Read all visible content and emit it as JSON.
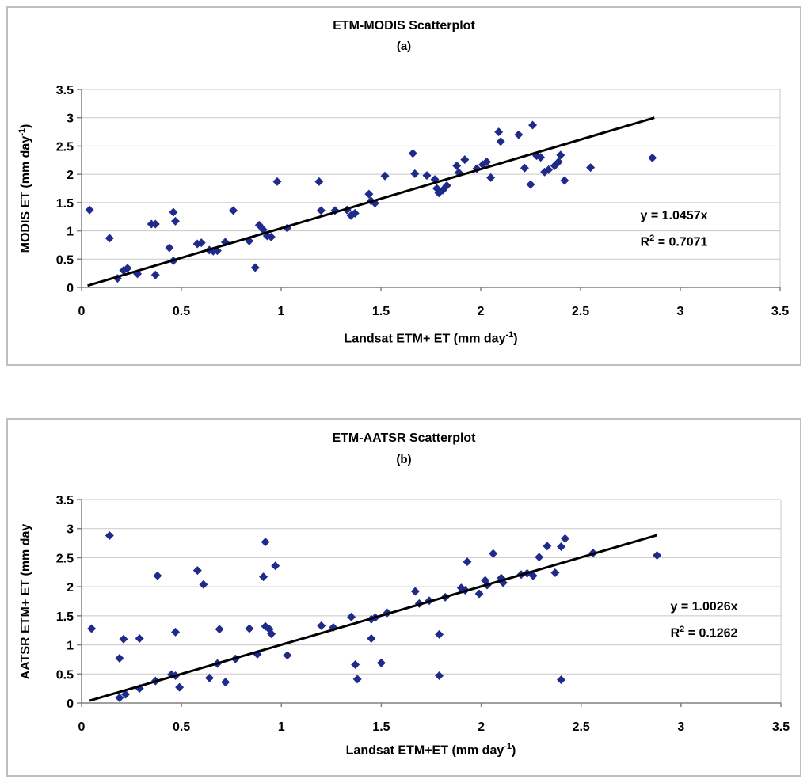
{
  "figure": {
    "background": "#FFFFFF",
    "panel_border_color": "#BFBFBF"
  },
  "chart_data": [
    {
      "type": "scatter",
      "title": "ETM-MODIS Scatterplot",
      "subtitle": "(a)",
      "xlabel": {
        "base": "Landsat ETM+ ET (mm day",
        "sup": "-1",
        "close": ")"
      },
      "ylabel": {
        "base": "MODIS ET (mm day",
        "sup": "-1",
        "close": ")"
      },
      "xlim": [
        0,
        3.5
      ],
      "ylim": [
        0,
        3.5
      ],
      "x_ticks": [
        0,
        0.5,
        1,
        1.5,
        2,
        2.5,
        3,
        3.5
      ],
      "y_ticks": [
        0,
        0.5,
        1,
        1.5,
        2,
        2.5,
        3,
        3.5
      ],
      "grid": "horizontal-only",
      "legend": "none",
      "marker_shape": "diamond",
      "colors": {
        "marker": "#1F2B8A",
        "trendline": "#000000",
        "grid": "#C8C8C8",
        "axis": "#808080"
      },
      "trendline": {
        "slope": 1.0457,
        "intercept": 0,
        "x_start": 0.03,
        "x_end": 2.87
      },
      "equation": {
        "line1": "y = 1.0457x",
        "r_base": "R",
        "r_sup": "2",
        "r_rest": " = 0.7071"
      },
      "points": [
        [
          0.04,
          1.37
        ],
        [
          0.14,
          0.87
        ],
        [
          0.18,
          0.16
        ],
        [
          0.21,
          0.3
        ],
        [
          0.23,
          0.34
        ],
        [
          0.28,
          0.24
        ],
        [
          0.35,
          1.12
        ],
        [
          0.37,
          1.12
        ],
        [
          0.37,
          0.22
        ],
        [
          0.44,
          0.7
        ],
        [
          0.46,
          1.33
        ],
        [
          0.47,
          1.17
        ],
        [
          0.46,
          0.47
        ],
        [
          0.58,
          0.77
        ],
        [
          0.6,
          0.79
        ],
        [
          0.64,
          0.66
        ],
        [
          0.66,
          0.64
        ],
        [
          0.68,
          0.65
        ],
        [
          0.72,
          0.8
        ],
        [
          0.76,
          1.36
        ],
        [
          0.84,
          0.82
        ],
        [
          0.87,
          0.35
        ],
        [
          0.89,
          1.1
        ],
        [
          0.91,
          1.02
        ],
        [
          0.93,
          0.91
        ],
        [
          0.95,
          0.89
        ],
        [
          0.98,
          1.87
        ],
        [
          1.03,
          1.05
        ],
        [
          1.19,
          1.87
        ],
        [
          1.2,
          1.36
        ],
        [
          1.27,
          1.36
        ],
        [
          1.33,
          1.37
        ],
        [
          1.35,
          1.27
        ],
        [
          1.37,
          1.31
        ],
        [
          1.44,
          1.65
        ],
        [
          1.45,
          1.53
        ],
        [
          1.47,
          1.49
        ],
        [
          1.52,
          1.97
        ],
        [
          1.66,
          2.37
        ],
        [
          1.67,
          2.01
        ],
        [
          1.73,
          1.98
        ],
        [
          1.77,
          1.91
        ],
        [
          1.78,
          1.75
        ],
        [
          1.79,
          1.67
        ],
        [
          1.81,
          1.72
        ],
        [
          1.83,
          1.8
        ],
        [
          1.88,
          2.15
        ],
        [
          1.89,
          2.03
        ],
        [
          1.92,
          2.26
        ],
        [
          1.98,
          2.1
        ],
        [
          2.01,
          2.17
        ],
        [
          2.03,
          2.22
        ],
        [
          2.05,
          1.94
        ],
        [
          2.09,
          2.75
        ],
        [
          2.1,
          2.58
        ],
        [
          2.19,
          2.7
        ],
        [
          2.26,
          2.87
        ],
        [
          2.22,
          2.11
        ],
        [
          2.25,
          1.82
        ],
        [
          2.28,
          2.33
        ],
        [
          2.3,
          2.3
        ],
        [
          2.32,
          2.04
        ],
        [
          2.34,
          2.08
        ],
        [
          2.37,
          2.15
        ],
        [
          2.39,
          2.22
        ],
        [
          2.4,
          2.34
        ],
        [
          2.42,
          1.89
        ],
        [
          2.55,
          2.12
        ],
        [
          2.86,
          2.29
        ]
      ]
    },
    {
      "type": "scatter",
      "title": "ETM-AATSR Scatterplot",
      "subtitle": "(b)",
      "xlabel": {
        "base": "Landsat ETM+ET (mm day",
        "sup": "-1",
        "close": ")"
      },
      "ylabel": {
        "base": "AATSR ETM+ ET (mm day",
        "sup": "",
        "close": ""
      },
      "xlim": [
        0,
        3.5
      ],
      "ylim": [
        0,
        3.5
      ],
      "x_ticks": [
        0,
        0.5,
        1,
        1.5,
        2,
        2.5,
        3,
        3.5
      ],
      "y_ticks": [
        0,
        0.5,
        1,
        1.5,
        2,
        2.5,
        3,
        3.5
      ],
      "grid": "horizontal-only",
      "legend": "none",
      "marker_shape": "diamond",
      "colors": {
        "marker": "#1F2B8A",
        "trendline": "#000000",
        "grid": "#C8C8C8",
        "axis": "#808080"
      },
      "trendline": {
        "slope": 1.0026,
        "intercept": 0,
        "x_start": 0.04,
        "x_end": 2.88
      },
      "equation": {
        "line1": "y = 1.0026x",
        "r_base": "R",
        "r_sup": "2",
        "r_rest": " = 0.1262"
      },
      "points": [
        [
          0.05,
          1.28
        ],
        [
          0.14,
          2.88
        ],
        [
          0.19,
          0.09
        ],
        [
          0.19,
          0.77
        ],
        [
          0.22,
          0.15
        ],
        [
          0.21,
          1.1
        ],
        [
          0.29,
          0.25
        ],
        [
          0.29,
          1.11
        ],
        [
          0.37,
          0.38
        ],
        [
          0.38,
          2.19
        ],
        [
          0.45,
          0.49
        ],
        [
          0.47,
          0.47
        ],
        [
          0.47,
          1.22
        ],
        [
          0.49,
          0.27
        ],
        [
          0.58,
          2.28
        ],
        [
          0.61,
          2.04
        ],
        [
          0.64,
          0.43
        ],
        [
          0.68,
          0.68
        ],
        [
          0.72,
          0.36
        ],
        [
          0.77,
          0.76
        ],
        [
          0.69,
          1.27
        ],
        [
          0.84,
          1.28
        ],
        [
          0.88,
          0.84
        ],
        [
          0.92,
          1.32
        ],
        [
          0.94,
          1.27
        ],
        [
          0.95,
          1.19
        ],
        [
          0.92,
          2.77
        ],
        [
          0.91,
          2.17
        ],
        [
          0.97,
          2.36
        ],
        [
          1.03,
          0.82
        ],
        [
          1.2,
          1.33
        ],
        [
          1.26,
          1.3
        ],
        [
          1.35,
          1.48
        ],
        [
          1.37,
          0.66
        ],
        [
          1.38,
          0.41
        ],
        [
          1.45,
          1.44
        ],
        [
          1.47,
          1.47
        ],
        [
          1.45,
          1.11
        ],
        [
          1.5,
          0.69
        ],
        [
          1.53,
          1.55
        ],
        [
          1.67,
          1.92
        ],
        [
          1.69,
          1.71
        ],
        [
          1.74,
          1.76
        ],
        [
          1.79,
          1.18
        ],
        [
          1.79,
          0.47
        ],
        [
          1.82,
          1.82
        ],
        [
          1.9,
          1.98
        ],
        [
          1.92,
          1.94
        ],
        [
          1.93,
          2.43
        ],
        [
          1.99,
          1.88
        ],
        [
          2.02,
          2.11
        ],
        [
          2.03,
          2.03
        ],
        [
          2.06,
          2.57
        ],
        [
          2.1,
          2.15
        ],
        [
          2.11,
          2.07
        ],
        [
          2.2,
          2.21
        ],
        [
          2.23,
          2.23
        ],
        [
          2.26,
          2.19
        ],
        [
          2.29,
          2.51
        ],
        [
          2.33,
          2.7
        ],
        [
          2.37,
          2.24
        ],
        [
          2.4,
          2.69
        ],
        [
          2.42,
          2.83
        ],
        [
          2.4,
          0.4
        ],
        [
          2.56,
          2.58
        ],
        [
          2.88,
          2.54
        ]
      ]
    }
  ]
}
